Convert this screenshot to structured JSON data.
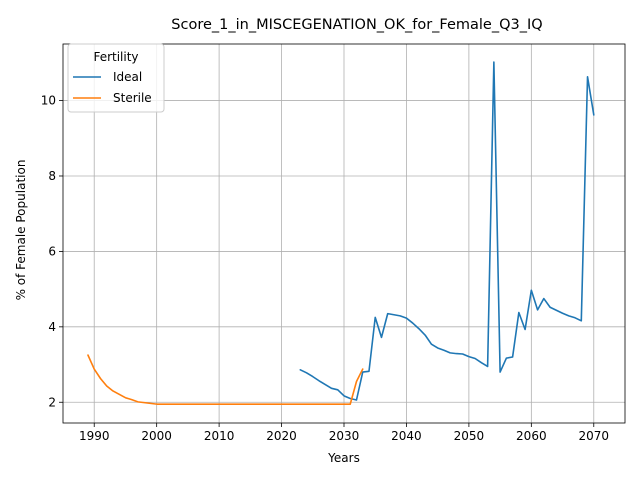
{
  "chart_data": {
    "type": "line",
    "title": "Score_1_in_MISCEGENATION_OK_for_Female_Q3_IQ",
    "xlabel": "Years",
    "ylabel": "% of Female Population",
    "xlim": [
      1985,
      2075
    ],
    "ylim": [
      1.45,
      11.5
    ],
    "xticks": [
      1990,
      2000,
      2010,
      2020,
      2030,
      2040,
      2050,
      2060,
      2070
    ],
    "yticks": [
      2,
      4,
      6,
      8,
      10
    ],
    "grid": true,
    "legend": {
      "title": "Fertility",
      "placement": "upper-left"
    },
    "series": [
      {
        "name": "Ideal",
        "color": "#1f77b4",
        "x": [
          2023,
          2024,
          2025,
          2026,
          2027,
          2028,
          2029,
          2030,
          2031,
          2032,
          2033,
          2034,
          2035,
          2036,
          2037,
          2038,
          2039,
          2040,
          2041,
          2042,
          2043,
          2044,
          2045,
          2046,
          2047,
          2048,
          2049,
          2050,
          2051,
          2052,
          2053,
          2054,
          2055,
          2056,
          2057,
          2058,
          2059,
          2060,
          2061,
          2062,
          2063,
          2064,
          2065,
          2066,
          2067,
          2068,
          2069,
          2070
        ],
        "y": [
          2.86,
          2.78,
          2.68,
          2.57,
          2.47,
          2.37,
          2.33,
          2.17,
          2.1,
          2.06,
          2.8,
          2.82,
          4.25,
          3.72,
          4.35,
          4.32,
          4.29,
          4.23,
          4.1,
          3.95,
          3.78,
          3.54,
          3.44,
          3.38,
          3.31,
          3.29,
          3.28,
          3.21,
          3.16,
          3.05,
          2.95,
          11.02,
          2.8,
          3.17,
          3.2,
          4.38,
          3.93,
          4.97,
          4.45,
          4.75,
          4.52,
          4.44,
          4.36,
          4.29,
          4.24,
          4.16,
          10.63,
          9.62
        ]
      },
      {
        "name": "Sterile",
        "color": "#ff7f0e",
        "x": [
          1989,
          1990,
          1991,
          1992,
          1993,
          1994,
          1995,
          1996,
          1997,
          1998,
          1999,
          2000,
          2005,
          2010,
          2015,
          2020,
          2025,
          2030,
          2031,
          2032,
          2033
        ],
        "y": [
          3.25,
          2.88,
          2.63,
          2.43,
          2.3,
          2.21,
          2.12,
          2.07,
          2.01,
          1.99,
          1.97,
          1.95,
          1.95,
          1.95,
          1.95,
          1.95,
          1.95,
          1.95,
          1.95,
          2.55,
          2.88
        ]
      }
    ]
  }
}
